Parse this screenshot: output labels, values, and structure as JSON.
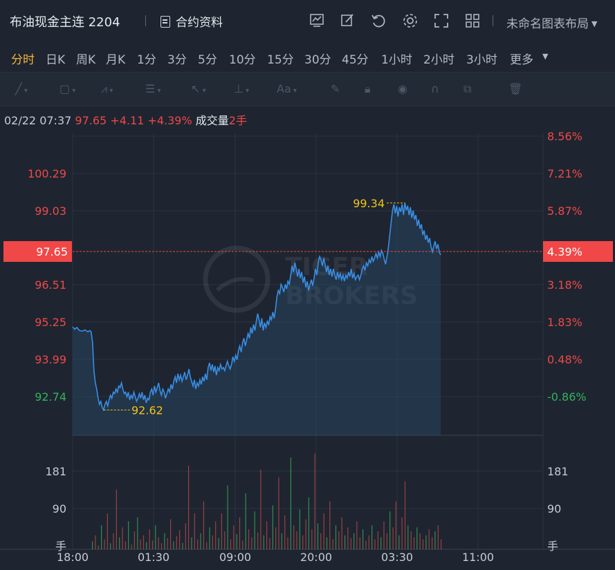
{
  "header": {
    "title": "布油现金主连 2204",
    "contract_info_label": "合约资料",
    "layout_label": "未命名图表布局",
    "icons": [
      "chart-type-icon",
      "edit-icon",
      "refresh-icon",
      "settings-icon",
      "fullscreen-icon",
      "grid-layout-icon"
    ]
  },
  "periods": [
    {
      "label": "分时",
      "active": true
    },
    {
      "label": "日K",
      "active": false
    },
    {
      "label": "周K",
      "active": false
    },
    {
      "label": "月K",
      "active": false
    },
    {
      "label": "1分",
      "active": false
    },
    {
      "label": "3分",
      "active": false
    },
    {
      "label": "5分",
      "active": false
    },
    {
      "label": "10分",
      "active": false
    },
    {
      "label": "15分",
      "active": false
    },
    {
      "label": "30分",
      "active": false
    },
    {
      "label": "45分",
      "active": false
    },
    {
      "label": "1小时",
      "active": false
    },
    {
      "label": "2小时",
      "active": false
    },
    {
      "label": "3小时",
      "active": false
    },
    {
      "label": "更多",
      "active": false
    }
  ],
  "draw_tools": [
    "line-tool-icon",
    "rectangle-tool-icon",
    "pattern-tool-icon",
    "fib-tool-icon",
    "arrow-tool-icon",
    "measure-tool-icon",
    "text-tool-icon",
    "brush-icon",
    "lock-icon",
    "eye-icon",
    "magnet-icon",
    "clone-icon",
    "trash-icon"
  ],
  "info": {
    "datetime": "02/22 07:37",
    "price": "97.65",
    "change": "+4.11",
    "change_pct": "+4.39%",
    "volume_label": "成交量",
    "volume": "2手"
  },
  "colors": {
    "up": "#f04848",
    "down": "#36b15e",
    "line": "#3a8ee6",
    "annot": "#f3c416",
    "bg": "#1e2530"
  },
  "chart_data": {
    "type": "line",
    "x_ticks": [
      "18:00",
      "01:30",
      "09:00",
      "20:00",
      "03:30",
      "11:00"
    ],
    "y_ticks_left": [
      "100.29",
      "99.03",
      "97.65",
      "96.51",
      "95.25",
      "93.99",
      "92.74"
    ],
    "y_ticks_right": [
      "8.56%",
      "7.21%",
      "5.87%",
      "4.39%",
      "3.18%",
      "1.83%",
      "0.48%",
      "-0.86%"
    ],
    "current_price": "97.65",
    "current_pct": "4.39%",
    "annotations": {
      "high": "99.34",
      "low": "92.62"
    },
    "volume_ticks": [
      "181",
      "90",
      "手"
    ],
    "ylim": [
      91.8,
      101.6
    ],
    "points": [
      [
        0,
        95.32
      ],
      [
        3,
        95.24
      ],
      [
        6,
        95.3
      ],
      [
        10,
        95.2
      ],
      [
        14,
        95.18
      ],
      [
        18,
        95.22
      ],
      [
        22,
        95.16
      ],
      [
        25,
        95.2
      ],
      [
        27,
        95.15
      ],
      [
        29,
        94.8
      ],
      [
        31,
        93.9
      ],
      [
        33,
        93.5
      ],
      [
        35,
        93.3
      ],
      [
        37,
        93.0
      ],
      [
        39,
        92.8
      ],
      [
        41,
        92.9
      ],
      [
        43,
        92.7
      ],
      [
        45,
        92.62
      ],
      [
        47,
        92.8
      ],
      [
        49,
        92.9
      ],
      [
        51,
        92.75
      ],
      [
        53,
        92.95
      ],
      [
        55,
        93.1
      ],
      [
        57,
        93.0
      ],
      [
        59,
        93.2
      ],
      [
        61,
        93.15
      ],
      [
        63,
        93.3
      ],
      [
        65,
        93.2
      ],
      [
        67,
        93.4
      ],
      [
        69,
        93.35
      ],
      [
        71,
        93.5
      ],
      [
        73,
        93.3
      ],
      [
        75,
        93.15
      ],
      [
        77,
        93.2
      ],
      [
        79,
        93.05
      ],
      [
        81,
        93.2
      ],
      [
        83,
        92.95
      ],
      [
        85,
        93.1
      ],
      [
        87,
        93.0
      ],
      [
        89,
        93.2
      ],
      [
        91,
        93.05
      ],
      [
        93,
        92.9
      ],
      [
        95,
        93.0
      ],
      [
        97,
        93.15
      ],
      [
        99,
        93.0
      ],
      [
        101,
        93.2
      ],
      [
        103,
        92.95
      ],
      [
        105,
        93.1
      ],
      [
        107,
        92.85
      ],
      [
        109,
        93.0
      ],
      [
        111,
        92.95
      ],
      [
        113,
        93.2
      ],
      [
        115,
        93.3
      ],
      [
        117,
        93.1
      ],
      [
        119,
        93.4
      ],
      [
        121,
        93.2
      ],
      [
        123,
        93.35
      ],
      [
        125,
        93.5
      ],
      [
        127,
        93.25
      ],
      [
        129,
        93.1
      ],
      [
        131,
        93.3
      ],
      [
        133,
        93.2
      ],
      [
        135,
        93.0
      ],
      [
        137,
        93.15
      ],
      [
        139,
        93.3
      ],
      [
        141,
        93.2
      ],
      [
        143,
        93.45
      ],
      [
        145,
        93.3
      ],
      [
        147,
        93.55
      ],
      [
        149,
        93.7
      ],
      [
        151,
        93.5
      ],
      [
        153,
        93.8
      ],
      [
        155,
        93.6
      ],
      [
        157,
        93.75
      ],
      [
        159,
        93.55
      ],
      [
        161,
        93.7
      ],
      [
        163,
        93.85
      ],
      [
        165,
        93.6
      ],
      [
        167,
        93.75
      ],
      [
        169,
        93.95
      ],
      [
        171,
        93.7
      ],
      [
        173,
        93.55
      ],
      [
        175,
        93.4
      ],
      [
        177,
        93.6
      ],
      [
        179,
        93.3
      ],
      [
        181,
        93.5
      ],
      [
        183,
        93.4
      ],
      [
        185,
        93.6
      ],
      [
        187,
        93.45
      ],
      [
        189,
        93.7
      ],
      [
        191,
        93.55
      ],
      [
        193,
        93.8
      ],
      [
        195,
        93.6
      ],
      [
        197,
        94.0
      ],
      [
        199,
        94.15
      ],
      [
        201,
        93.9
      ],
      [
        203,
        94.1
      ],
      [
        205,
        93.85
      ],
      [
        207,
        94.05
      ],
      [
        209,
        93.75
      ],
      [
        211,
        94.0
      ],
      [
        213,
        93.9
      ],
      [
        215,
        94.1
      ],
      [
        217,
        93.95
      ],
      [
        219,
        94.0
      ],
      [
        221,
        93.9
      ],
      [
        223,
        94.05
      ],
      [
        225,
        94.2
      ],
      [
        227,
        94.05
      ],
      [
        229,
        93.95
      ],
      [
        231,
        94.1
      ],
      [
        233,
        94.35
      ],
      [
        235,
        94.2
      ],
      [
        237,
        94.4
      ],
      [
        239,
        94.25
      ],
      [
        241,
        94.55
      ],
      [
        243,
        94.7
      ],
      [
        245,
        94.5
      ],
      [
        247,
        94.8
      ],
      [
        249,
        94.95
      ],
      [
        251,
        94.7
      ],
      [
        253,
        94.9
      ],
      [
        255,
        95.1
      ],
      [
        257,
        94.95
      ],
      [
        259,
        95.3
      ],
      [
        261,
        95.1
      ],
      [
        263,
        95.4
      ],
      [
        265,
        95.2
      ],
      [
        267,
        95.5
      ],
      [
        269,
        95.75
      ],
      [
        271,
        95.55
      ],
      [
        273,
        95.3
      ],
      [
        275,
        95.6
      ],
      [
        277,
        95.2
      ],
      [
        279,
        95.45
      ],
      [
        281,
        95.3
      ],
      [
        283,
        95.5
      ],
      [
        285,
        95.4
      ],
      [
        287,
        95.65
      ],
      [
        289,
        95.55
      ],
      [
        291,
        95.8
      ],
      [
        293,
        95.6
      ],
      [
        295,
        95.9
      ],
      [
        297,
        96.3
      ],
      [
        299,
        96.5
      ],
      [
        301,
        96.4
      ],
      [
        303,
        96.7
      ],
      [
        305,
        96.6
      ],
      [
        307,
        96.45
      ],
      [
        309,
        96.7
      ],
      [
        311,
        96.55
      ],
      [
        313,
        96.8
      ],
      [
        315,
        96.7
      ],
      [
        317,
        97.0
      ],
      [
        319,
        97.3
      ],
      [
        321,
        97.1
      ],
      [
        323,
        97.4
      ],
      [
        325,
        97.2
      ],
      [
        327,
        96.95
      ],
      [
        329,
        97.2
      ],
      [
        331,
        96.9
      ],
      [
        333,
        97.1
      ],
      [
        335,
        96.75
      ],
      [
        337,
        96.95
      ],
      [
        339,
        96.6
      ],
      [
        341,
        96.8
      ],
      [
        343,
        96.5
      ],
      [
        345,
        96.7
      ],
      [
        347,
        96.85
      ],
      [
        349,
        96.65
      ],
      [
        351,
        96.9
      ],
      [
        353,
        97.2
      ],
      [
        355,
        97.0
      ],
      [
        357,
        97.4
      ],
      [
        359,
        97.6
      ],
      [
        361,
        97.5
      ],
      [
        363,
        97.3
      ],
      [
        365,
        97.55
      ],
      [
        367,
        97.35
      ],
      [
        369,
        97.1
      ],
      [
        371,
        97.3
      ],
      [
        373,
        97.0
      ],
      [
        375,
        97.2
      ],
      [
        377,
        96.95
      ],
      [
        379,
        97.2
      ],
      [
        381,
        97.0
      ],
      [
        383,
        96.85
      ],
      [
        385,
        97.1
      ],
      [
        387,
        96.9
      ],
      [
        389,
        97.05
      ],
      [
        391,
        96.85
      ],
      [
        393,
        97.0
      ],
      [
        395,
        96.8
      ],
      [
        397,
        97.0
      ],
      [
        399,
        96.9
      ],
      [
        401,
        97.1
      ],
      [
        403,
        96.95
      ],
      [
        405,
        97.2
      ],
      [
        407,
        96.9
      ],
      [
        409,
        97.05
      ],
      [
        411,
        96.85
      ],
      [
        413,
        96.95
      ],
      [
        415,
        97.0
      ],
      [
        417,
        96.85
      ],
      [
        419,
        97.0
      ],
      [
        421,
        97.2
      ],
      [
        423,
        97.3
      ],
      [
        425,
        97.15
      ],
      [
        427,
        97.4
      ],
      [
        429,
        97.3
      ],
      [
        431,
        97.5
      ],
      [
        433,
        97.4
      ],
      [
        435,
        97.6
      ],
      [
        437,
        97.45
      ],
      [
        439,
        97.55
      ],
      [
        441,
        97.7
      ],
      [
        443,
        97.55
      ],
      [
        445,
        97.75
      ],
      [
        447,
        97.6
      ],
      [
        449,
        97.8
      ],
      [
        451,
        97.7
      ],
      [
        453,
        97.5
      ],
      [
        455,
        97.35
      ],
      [
        457,
        97.6
      ],
      [
        459,
        97.9
      ],
      [
        461,
        98.3
      ],
      [
        463,
        98.7
      ],
      [
        465,
        99.1
      ],
      [
        467,
        99.3
      ],
      [
        469,
        99.0
      ],
      [
        471,
        99.25
      ],
      [
        473,
        98.9
      ],
      [
        475,
        99.2
      ],
      [
        477,
        99.05
      ],
      [
        479,
        99.3
      ],
      [
        481,
        98.95
      ],
      [
        483,
        99.34
      ],
      [
        485,
        99.1
      ],
      [
        487,
        99.25
      ],
      [
        489,
        98.95
      ],
      [
        491,
        99.2
      ],
      [
        493,
        98.85
      ],
      [
        495,
        99.1
      ],
      [
        497,
        98.8
      ],
      [
        499,
        98.95
      ],
      [
        501,
        98.6
      ],
      [
        503,
        98.8
      ],
      [
        505,
        98.5
      ],
      [
        507,
        98.65
      ],
      [
        509,
        98.3
      ],
      [
        511,
        98.45
      ],
      [
        513,
        98.15
      ],
      [
        515,
        98.3
      ],
      [
        517,
        98.05
      ],
      [
        519,
        98.2
      ],
      [
        521,
        97.9
      ],
      [
        523,
        97.75
      ],
      [
        525,
        97.95
      ],
      [
        527,
        98.1
      ],
      [
        529,
        97.85
      ],
      [
        531,
        98.0
      ],
      [
        533,
        97.75
      ],
      [
        535,
        97.65
      ]
    ],
    "volumes": [
      20,
      35,
      10,
      60,
      25,
      90,
      15,
      40,
      150,
      30,
      55,
      20,
      70,
      12,
      45,
      80,
      25,
      35,
      18,
      50,
      22,
      60,
      30,
      15,
      40,
      28,
      75,
      20,
      33,
      48,
      16,
      65,
      210,
      30,
      90,
      25,
      40,
      120,
      18,
      55,
      35,
      70,
      28,
      90,
      45,
      160,
      25,
      60,
      38,
      80,
      22,
      140,
      50,
      30,
      95,
      42,
      200,
      35,
      70,
      28,
      110,
      55,
      180,
      40,
      85,
      30,
      230,
      60,
      45,
      100,
      35,
      75,
      130,
      50,
      240,
      65,
      40,
      90,
      30,
      120,
      25,
      60,
      45,
      80,
      35,
      55,
      28,
      40,
      70,
      30,
      50,
      22,
      35,
      60,
      25,
      45,
      30,
      70,
      40,
      95,
      55,
      120,
      35,
      80,
      170,
      60,
      45,
      30,
      55,
      40,
      25,
      35,
      50,
      30,
      45,
      60,
      25
    ]
  }
}
